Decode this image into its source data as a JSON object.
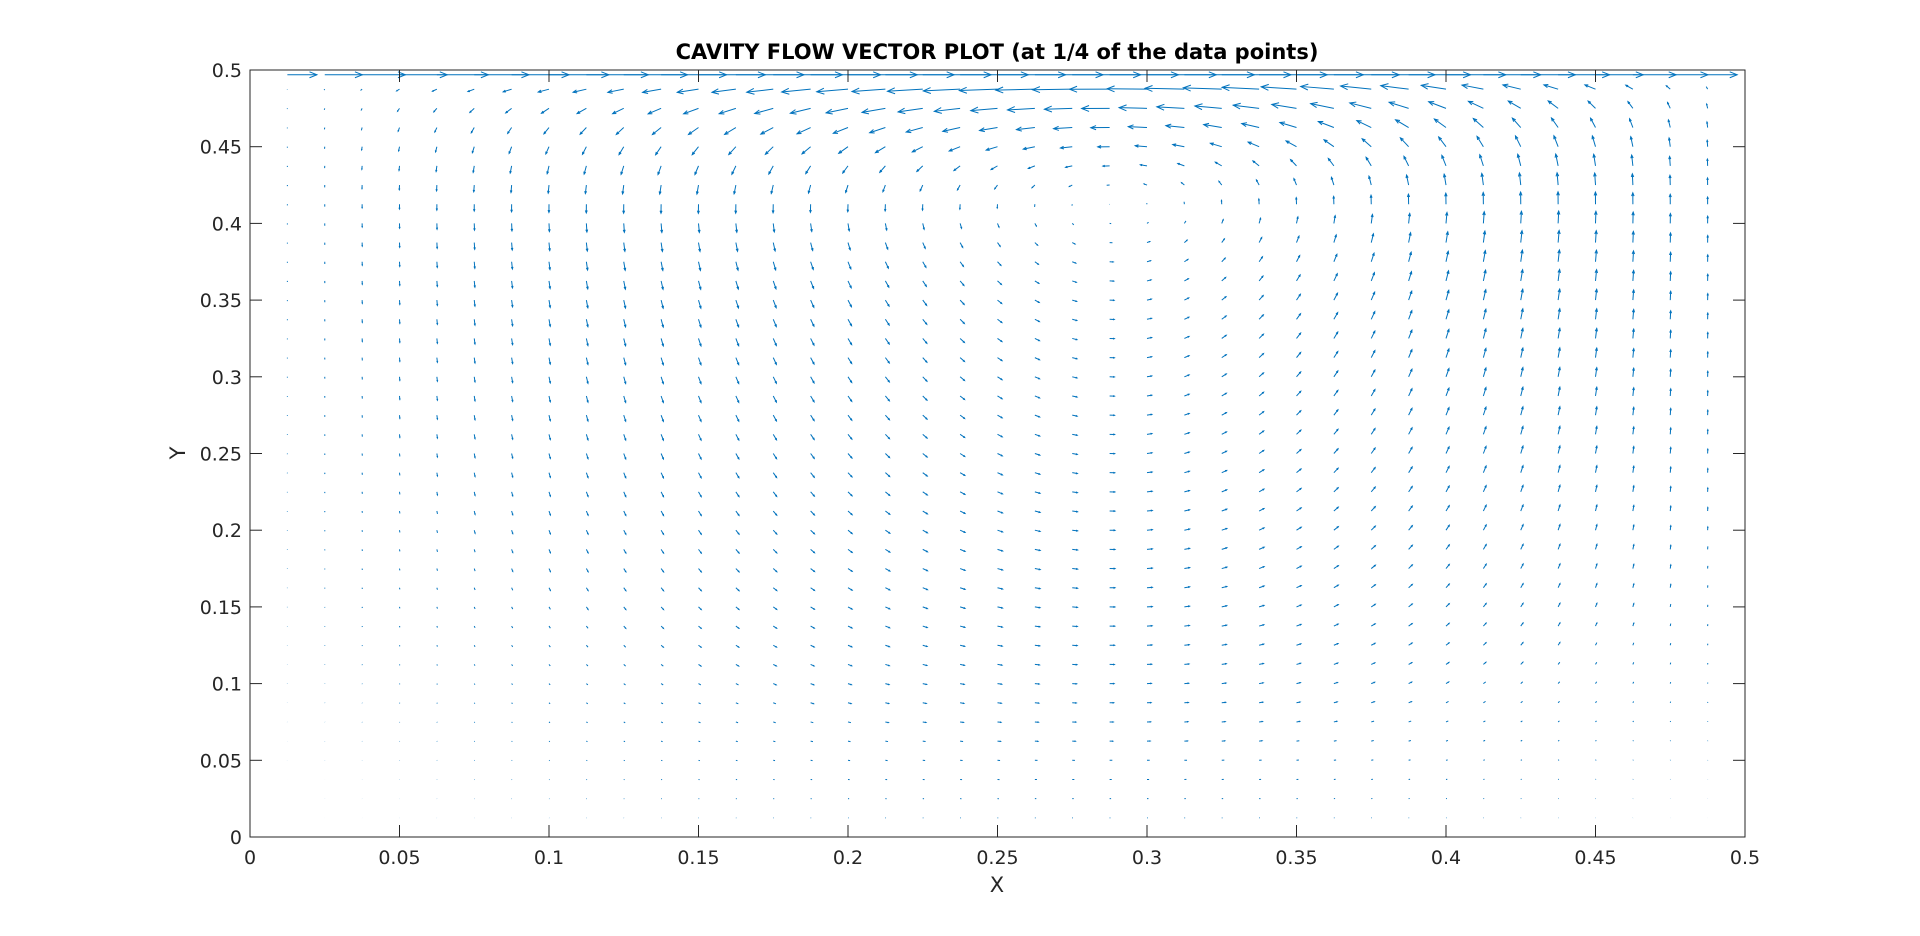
{
  "chart_data": {
    "type": "quiver",
    "title": "CAVITY FLOW VECTOR PLOT (at 1/4 of the data points)",
    "xlabel": "X",
    "ylabel": "Y",
    "xlim": [
      0,
      0.5
    ],
    "ylim": [
      0,
      0.5
    ],
    "xticks": [
      0,
      0.05,
      0.1,
      0.15,
      0.2,
      0.25,
      0.3,
      0.35,
      0.4,
      0.45,
      0.5
    ],
    "yticks": [
      0,
      0.05,
      0.1,
      0.15,
      0.2,
      0.25,
      0.3,
      0.35,
      0.4,
      0.45,
      0.5
    ],
    "xtick_labels": [
      "0",
      "0.05",
      "0.1",
      "0.15",
      "0.2",
      "0.25",
      "0.3",
      "0.35",
      "0.4",
      "0.45",
      "0.5"
    ],
    "ytick_labels": [
      "0",
      "0.05",
      "0.1",
      "0.15",
      "0.2",
      "0.25",
      "0.3",
      "0.35",
      "0.4",
      "0.45",
      "0.5"
    ],
    "grid": false,
    "box": true,
    "vector_color": "#0072BD",
    "field": {
      "kind": "lid-driven-cavity",
      "vortex_center": [
        0.275,
        0.3
      ],
      "lid_y": 0.5,
      "lid_direction": "+x",
      "sample_spacing_x": 0.0125,
      "sample_spacing_y": 0.0125
    }
  }
}
